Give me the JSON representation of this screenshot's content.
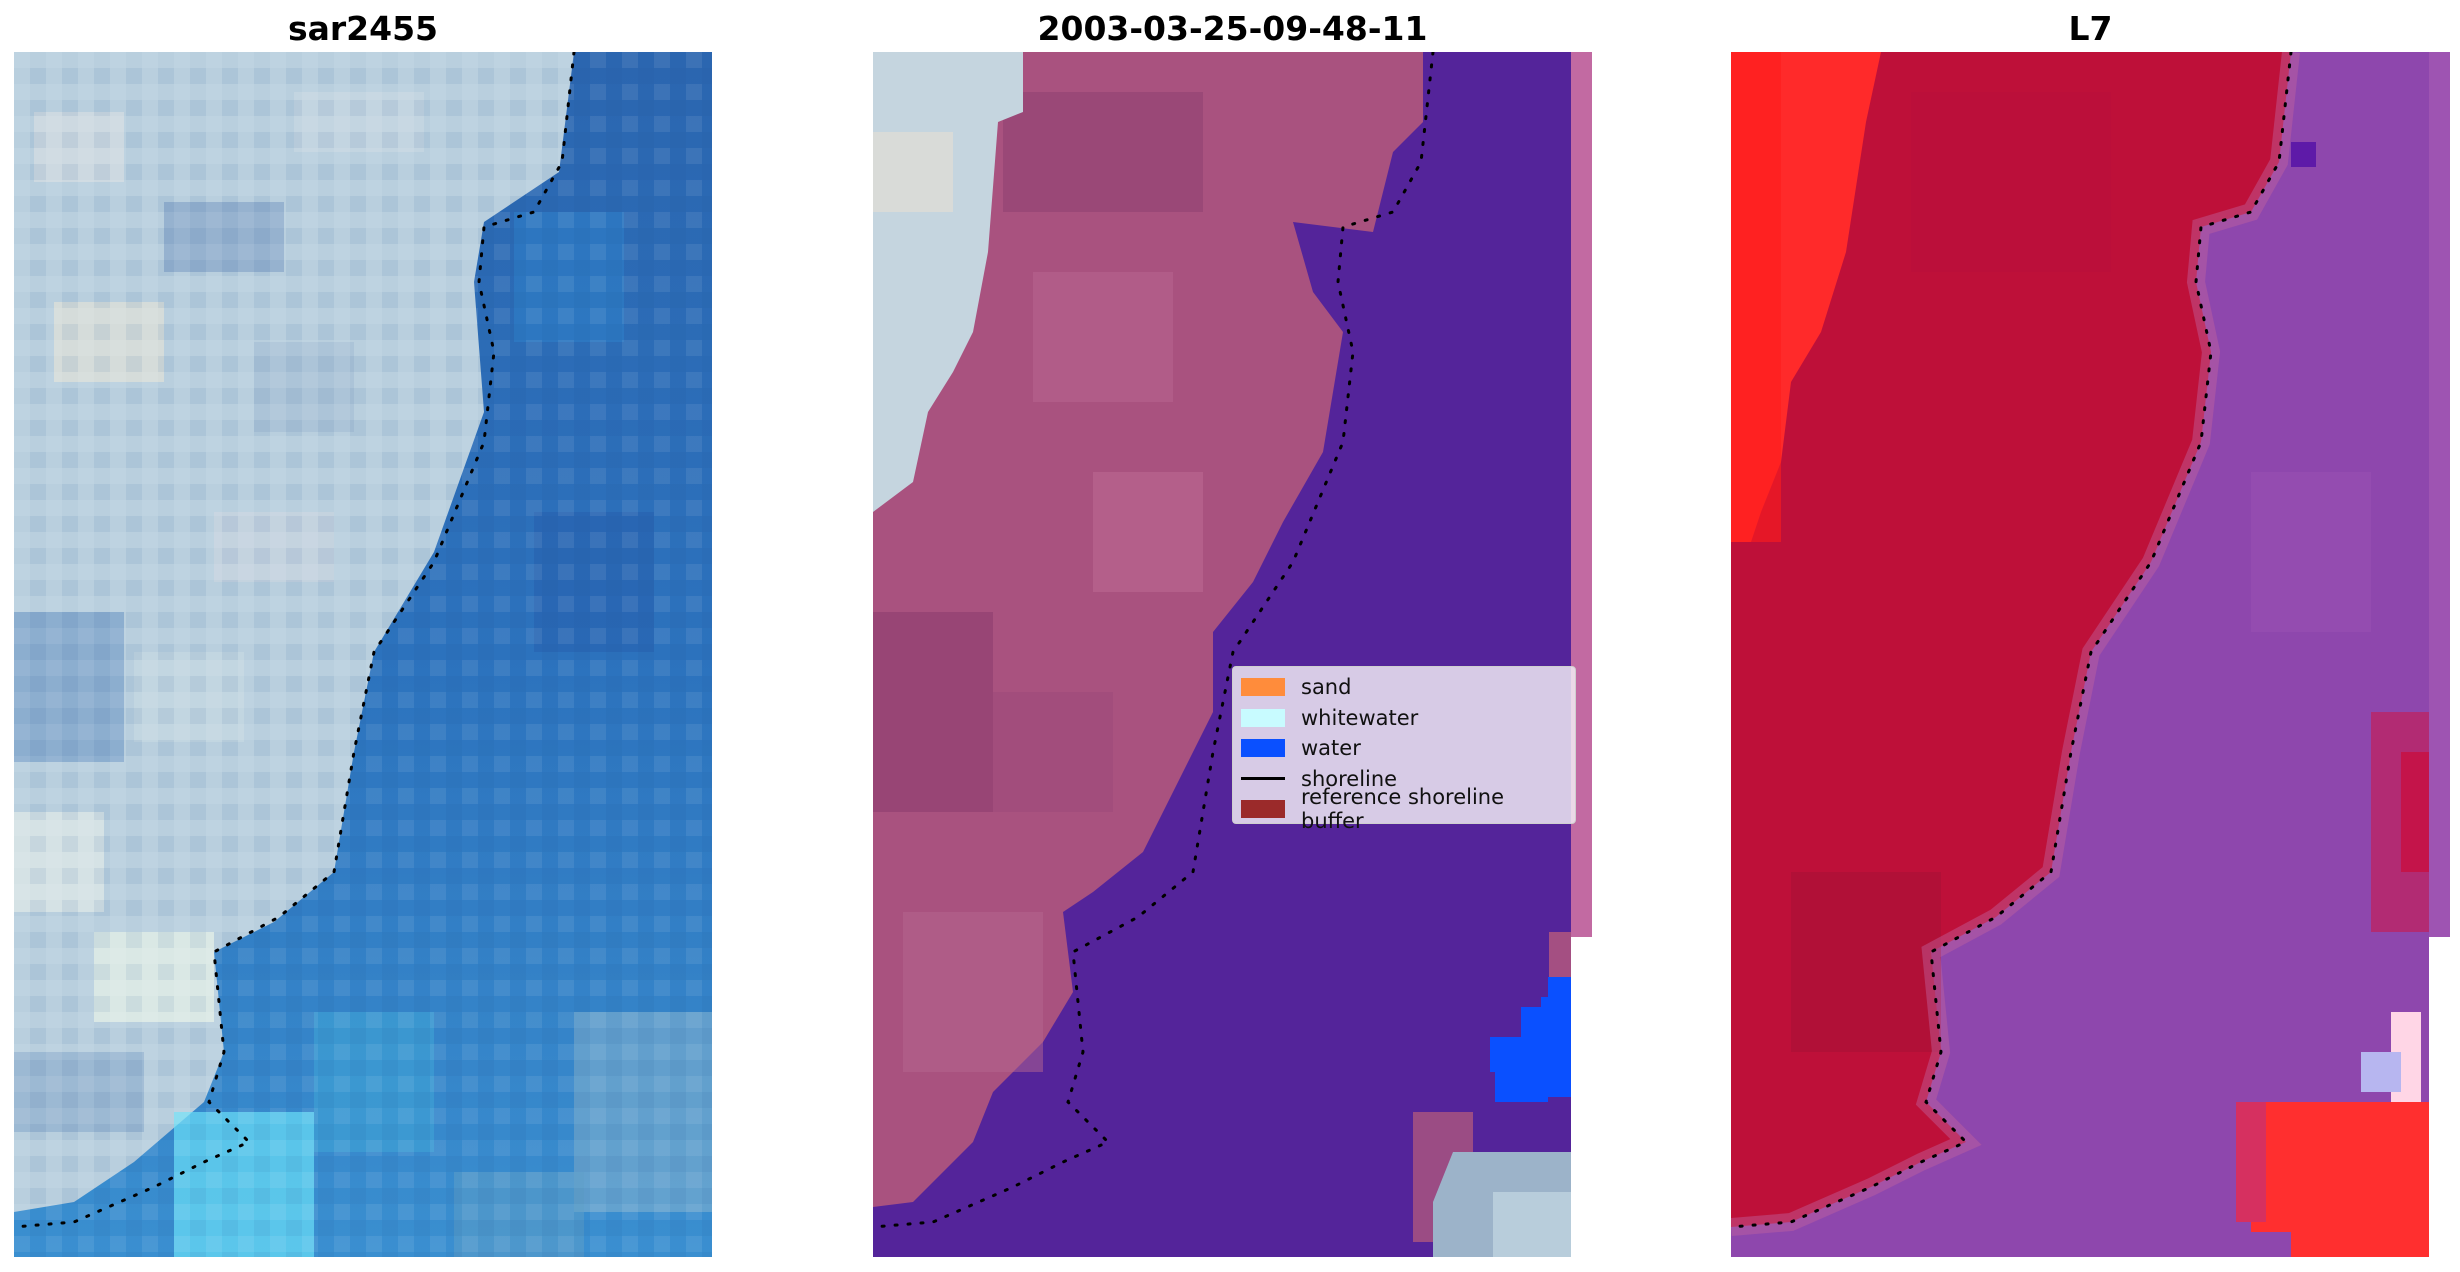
{
  "panels": [
    {
      "title": "sar2455"
    },
    {
      "title": "2003-03-25-09-48-11"
    },
    {
      "title": "L7"
    }
  ],
  "legend": {
    "items": [
      {
        "label": "sand",
        "color": "#ff8c3b",
        "kind": "patch"
      },
      {
        "label": "whitewater",
        "color": "#c8fbff",
        "kind": "patch"
      },
      {
        "label": "water",
        "color": "#0a50ff",
        "kind": "patch"
      },
      {
        "label": "shoreline",
        "color": "#000000",
        "kind": "line"
      },
      {
        "label": "reference shoreline buffer",
        "color": "#9b2a2a",
        "kind": "patch"
      }
    ]
  },
  "colors": {
    "rgb_land": "#b8cddc",
    "rgb_water": "#2d6fb6",
    "class_land": "#a8507e",
    "class_water": "#54249a",
    "class_water_pixels": "#0a50ff",
    "ndwi_land": "#be1039",
    "ndwi_land_bright": "#ff2424",
    "ndwi_water": "#8c48ac",
    "shoreline": "#000000"
  }
}
